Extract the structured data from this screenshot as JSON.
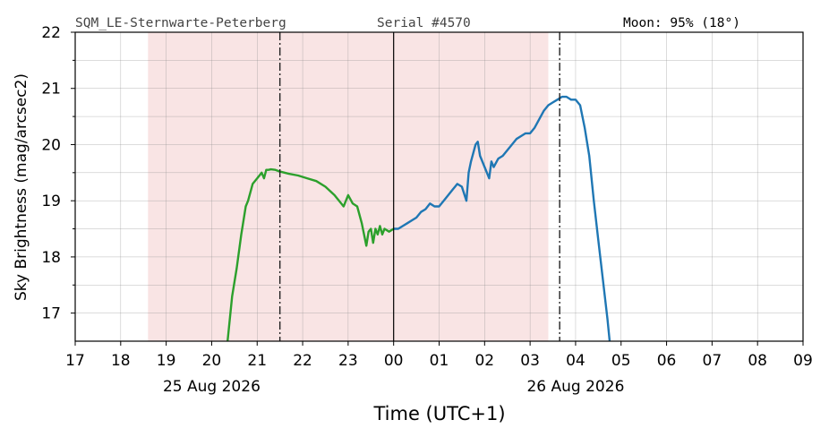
{
  "header": {
    "station": "SQM_LE-Sternwarte-Peterberg",
    "serial": "Serial #4570",
    "moon": "Moon: 95% (18°)"
  },
  "chart_data": {
    "type": "line",
    "xlabel": "Time (UTC+1)",
    "ylabel": "Sky Brightness (mag/arcsec2)",
    "x_unit": "hours relative to 26 Aug 2026 00:00 (UTC+1)",
    "xlim": [
      -7,
      9
    ],
    "ylim": [
      16.5,
      22
    ],
    "x_tick_labels": [
      "17",
      "18",
      "19",
      "20",
      "21",
      "22",
      "23",
      "00",
      "01",
      "02",
      "03",
      "04",
      "05",
      "06",
      "07",
      "08",
      "09"
    ],
    "y_tick_labels": [
      "17",
      "18",
      "19",
      "20",
      "21",
      "22"
    ],
    "date_labels": [
      {
        "text": "25 Aug 2026",
        "x": -4
      },
      {
        "text": "26 Aug 2026",
        "x": 4
      }
    ],
    "grid": true,
    "night_span": [
      -5.4,
      3.4
    ],
    "night_color": "#f9e4e4",
    "midnight_line": 0,
    "dashdot_lines": [
      -2.5,
      3.65
    ],
    "series": [
      {
        "color": "#2ca02c",
        "x": [
          -3.65,
          -3.55,
          -3.45,
          -3.35,
          -3.25,
          -3.2,
          -3.1,
          -3.0,
          -2.95,
          -2.9,
          -2.85,
          -2.8,
          -2.75,
          -2.7,
          -2.6,
          -2.5,
          -2.3,
          -2.1,
          -1.9,
          -1.7,
          -1.5,
          -1.3,
          -1.1,
          -1.0,
          -0.9,
          -0.8,
          -0.7,
          -0.6,
          -0.55,
          -0.5,
          -0.45,
          -0.4,
          -0.35,
          -0.3,
          -0.25,
          -0.2,
          -0.1,
          0.0
        ],
        "y": [
          16.5,
          17.3,
          17.8,
          18.4,
          18.9,
          19.0,
          19.3,
          19.4,
          19.45,
          19.5,
          19.4,
          19.55,
          19.55,
          19.56,
          19.55,
          19.52,
          19.48,
          19.45,
          19.4,
          19.35,
          19.25,
          19.1,
          18.9,
          19.1,
          18.95,
          18.9,
          18.6,
          18.2,
          18.45,
          18.5,
          18.25,
          18.5,
          18.4,
          18.55,
          18.4,
          18.5,
          18.45,
          18.5
        ]
      },
      {
        "color": "#1f77b4",
        "x": [
          0.0,
          0.1,
          0.2,
          0.3,
          0.4,
          0.5,
          0.6,
          0.7,
          0.8,
          0.9,
          1.0,
          1.1,
          1.2,
          1.3,
          1.4,
          1.5,
          1.6,
          1.65,
          1.7,
          1.8,
          1.85,
          1.9,
          2.0,
          2.1,
          2.15,
          2.2,
          2.3,
          2.4,
          2.5,
          2.6,
          2.7,
          2.8,
          2.9,
          3.0,
          3.1,
          3.2,
          3.3,
          3.4,
          3.5,
          3.6,
          3.7,
          3.8,
          3.9,
          4.0,
          4.1,
          4.2,
          4.3,
          4.4,
          4.5,
          4.6,
          4.7,
          4.75
        ],
        "y": [
          18.5,
          18.5,
          18.55,
          18.6,
          18.65,
          18.7,
          18.8,
          18.85,
          18.95,
          18.9,
          18.9,
          19.0,
          19.1,
          19.2,
          19.3,
          19.25,
          19.0,
          19.5,
          19.7,
          20.0,
          20.05,
          19.8,
          19.6,
          19.4,
          19.7,
          19.6,
          19.75,
          19.8,
          19.9,
          20.0,
          20.1,
          20.15,
          20.2,
          20.2,
          20.3,
          20.45,
          20.6,
          20.7,
          20.75,
          20.8,
          20.85,
          20.85,
          20.8,
          20.8,
          20.7,
          20.3,
          19.8,
          19.0,
          18.3,
          17.6,
          16.9,
          16.5
        ]
      }
    ]
  }
}
